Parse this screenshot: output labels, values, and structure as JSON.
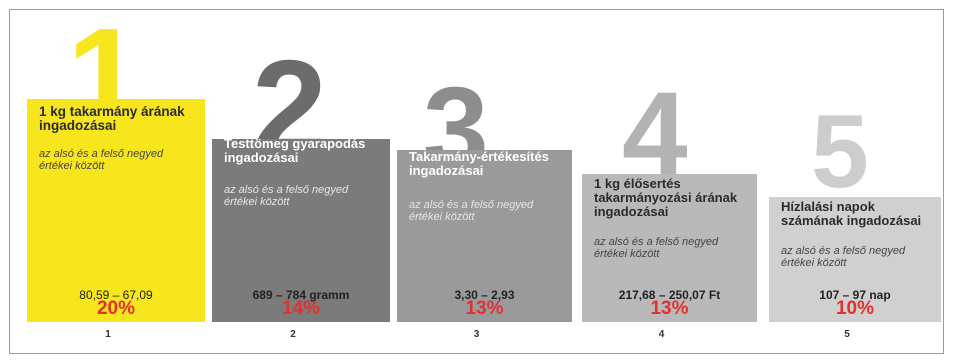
{
  "chart_data": {
    "type": "bar",
    "title": "",
    "xlabel": "",
    "ylabel": "",
    "categories": [
      "1",
      "2",
      "3",
      "4",
      "5"
    ],
    "series": [
      {
        "name": "",
        "values": [
          20,
          14,
          13,
          13,
          10
        ]
      }
    ],
    "ylim": [
      0,
      20
    ],
    "grid": false,
    "bars": [
      {
        "rank": "1",
        "title": "1 kg takarmány árának ingadozásai",
        "subtitle": "az alsó és a felső negyed értékei között",
        "range": "80,59 – 67,09",
        "percent_label": "20%",
        "value": 20,
        "color": "#f7e51e",
        "number_color": "#f7e51e"
      },
      {
        "rank": "2",
        "title": "Testtömeg gyarapodás ingadozásai",
        "subtitle": "az alsó és a felső negyed értékei között",
        "range": "689 – 784 gramm",
        "percent_label": "14%",
        "value": 14,
        "color": "#7b7b7b",
        "number_color": "#6c6c6c"
      },
      {
        "rank": "3",
        "title": "Takarmány-értékesítés ingadozásai",
        "subtitle": "az alsó és a felső negyed értékei között",
        "range": "3,30 – 2,93",
        "percent_label": "13%",
        "value": 13,
        "color": "#9a9a9a",
        "number_color": "#8d8d8d"
      },
      {
        "rank": "4",
        "title": "1 kg élősertés takarmányozási árának ingadozásai",
        "subtitle": "az alsó és a felső negyed értékei között",
        "range": "217,68 – 250,07 Ft",
        "percent_label": "13%",
        "value": 13,
        "color": "#b9b9b9",
        "number_color": "#b3b3b3"
      },
      {
        "rank": "5",
        "title": "Hízlalási napok számának ingadozásai",
        "subtitle": "az alsó és a felső negyed értékei között",
        "range": "107 – 97 nap",
        "percent_label": "10%",
        "value": 10,
        "color": "#d0d0d0",
        "number_color": "#cdcdcd"
      }
    ]
  }
}
